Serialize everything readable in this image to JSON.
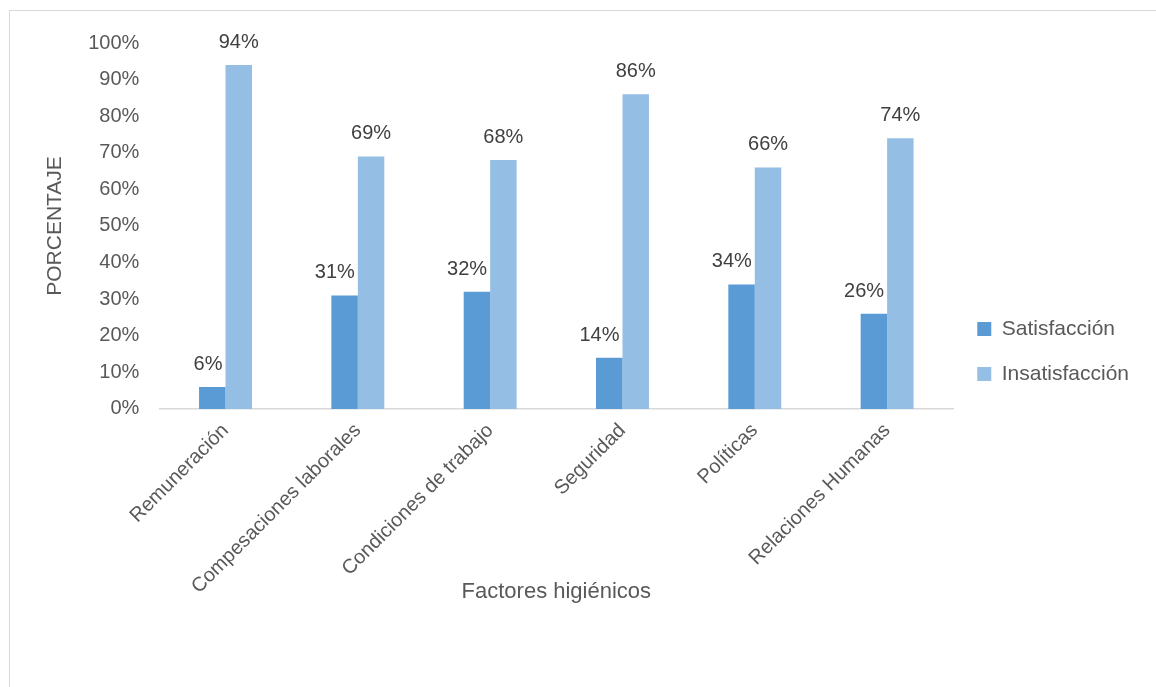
{
  "chart_data": {
    "type": "bar",
    "xlabel": "Factores higiénicos",
    "ylabel": "PORCENTAJE",
    "categories": [
      "Remuneración",
      "Compesaciones laborales",
      "Condiciones de trabajo",
      "Seguridad",
      "Políticas",
      "Relaciones Humanas"
    ],
    "series": [
      {
        "name": "Satisfacción",
        "color": "#5b9bd5",
        "values": [
          6,
          31,
          32,
          14,
          34,
          26
        ],
        "value_labels": [
          "6%",
          "31%",
          "32%",
          "14%",
          "34%",
          "26%"
        ]
      },
      {
        "name": "Insatisfacción",
        "color": "#94bee4",
        "values": [
          94,
          69,
          68,
          86,
          66,
          74
        ],
        "value_labels": [
          "94%",
          "69%",
          "68%",
          "86%",
          "66%",
          "74%"
        ]
      }
    ],
    "ylim": [
      0,
      100
    ],
    "yticks": [
      {
        "value": 0,
        "label": "0%"
      },
      {
        "value": 10,
        "label": "10%"
      },
      {
        "value": 20,
        "label": "20%"
      },
      {
        "value": 30,
        "label": "30%"
      },
      {
        "value": 40,
        "label": "40%"
      },
      {
        "value": 50,
        "label": "50%"
      },
      {
        "value": 60,
        "label": "60%"
      },
      {
        "value": 70,
        "label": "70%"
      },
      {
        "value": 80,
        "label": "80%"
      },
      {
        "value": 90,
        "label": "90%"
      },
      {
        "value": 100,
        "label": "100%"
      }
    ],
    "grid": false,
    "legend": "right"
  }
}
